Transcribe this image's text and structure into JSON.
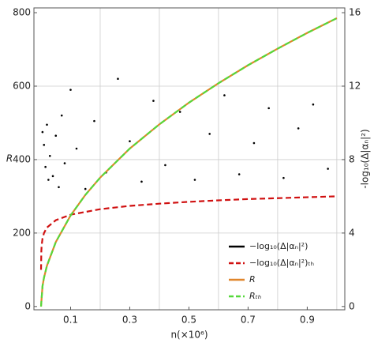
{
  "chart_data": {
    "type": "line",
    "xlabel": "n(×10⁶)",
    "ylabel": "R",
    "y2label": "-log₁₀(Δ|αₙ|²)",
    "xlim": [
      -0.024,
      1.027
    ],
    "ylim": [
      -9,
      813
    ],
    "y2lim": [
      -0.18,
      16.26
    ],
    "xticks": [
      0.1,
      0.3,
      0.5,
      0.7,
      0.9
    ],
    "yticks": [
      0,
      200,
      400,
      600,
      800
    ],
    "y2ticks": [
      0,
      4,
      8,
      12,
      16
    ],
    "xgrid": [
      0.2,
      0.4,
      0.6,
      0.8,
      1.0
    ],
    "ygrid": [
      200,
      400,
      600
    ],
    "legend": "lower right",
    "series": [
      {
        "name": "−log₁₀(Δ|αₙ|²)",
        "color": "#000000",
        "style": "scatter",
        "axis": "y2",
        "x": [
          0.005,
          0.01,
          0.015,
          0.02,
          0.025,
          0.03,
          0.04,
          0.05,
          0.06,
          0.07,
          0.08,
          0.1,
          0.12,
          0.15,
          0.18,
          0.22,
          0.26,
          0.3,
          0.34,
          0.38,
          0.42,
          0.47,
          0.52,
          0.57,
          0.62,
          0.67,
          0.72,
          0.77,
          0.82,
          0.87,
          0.92,
          0.97
        ],
        "values": [
          9.5,
          8.8,
          7.6,
          9.9,
          6.9,
          8.2,
          7.1,
          9.3,
          6.5,
          10.4,
          7.8,
          11.8,
          8.6,
          6.4,
          10.1,
          7.3,
          12.4,
          9.0,
          6.8,
          11.2,
          7.7,
          10.6,
          6.9,
          9.4,
          11.5,
          7.2,
          8.9,
          10.8,
          7.0,
          9.7,
          11.0,
          7.5
        ]
      },
      {
        "name": "−log₁₀(Δ|αₙ|²)ₜₕ",
        "color": "#d01010",
        "style": "dashed",
        "axis": "y2",
        "x": [
          0.0001,
          0.001,
          0.002,
          0.005,
          0.01,
          0.02,
          0.05,
          0.1,
          0.2,
          0.3,
          0.4,
          0.5,
          0.6,
          0.7,
          0.8,
          0.9,
          1.0
        ],
        "values": [
          2,
          3,
          3.3,
          3.7,
          4,
          4.3,
          4.7,
          5,
          5.3,
          5.48,
          5.6,
          5.7,
          5.78,
          5.85,
          5.9,
          5.95,
          6
        ]
      },
      {
        "name": "R",
        "color": "#e0862c",
        "style": "solid",
        "axis": "y",
        "x": [
          0,
          0.005,
          0.01,
          0.02,
          0.05,
          0.1,
          0.15,
          0.2,
          0.3,
          0.4,
          0.5,
          0.6,
          0.7,
          0.8,
          0.9,
          1.0
        ],
        "values": [
          0,
          55.5,
          78.5,
          111,
          175.5,
          248,
          304,
          351,
          430,
          496,
          555,
          608,
          657,
          702,
          745,
          785
        ]
      },
      {
        "name": "Rₜₕ",
        "color": "#55d83a",
        "style": "dashed",
        "axis": "y",
        "x": [
          0,
          0.005,
          0.01,
          0.02,
          0.05,
          0.1,
          0.15,
          0.2,
          0.3,
          0.4,
          0.5,
          0.6,
          0.7,
          0.8,
          0.9,
          1.0
        ],
        "values": [
          0,
          55.5,
          78.5,
          111,
          175.5,
          248,
          304,
          351,
          430,
          496,
          555,
          608,
          657,
          702,
          745,
          785
        ]
      }
    ]
  }
}
